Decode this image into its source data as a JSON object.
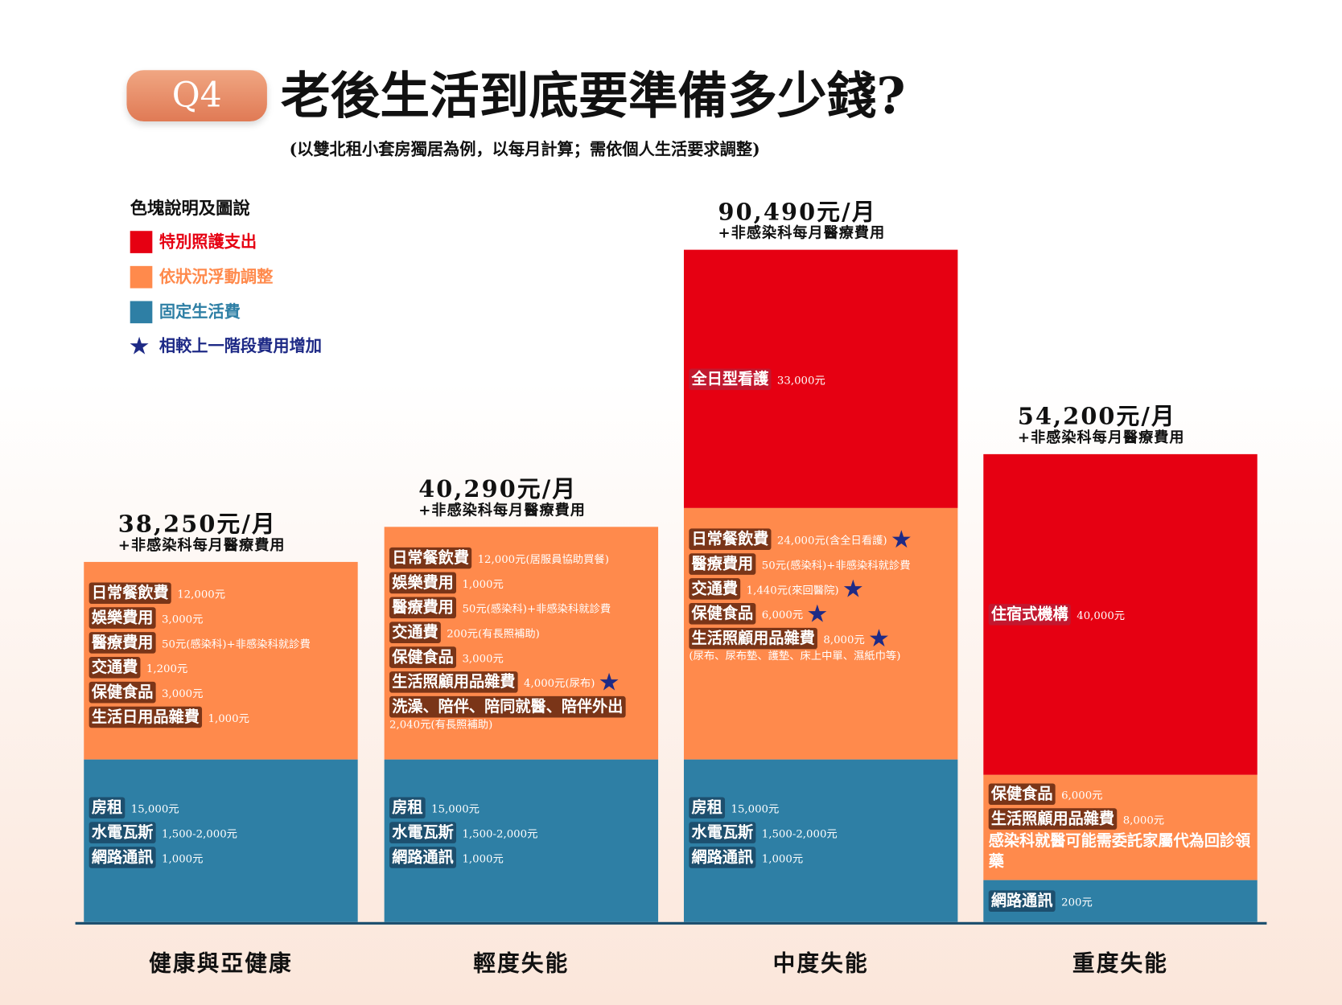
{
  "header": {
    "badge": "Q4",
    "title": "老後生活到底要準備多少錢?",
    "subtitle": "(以雙北租小套房獨居為例，以每月計算；需依個人生活要求調整)"
  },
  "legend": {
    "title": "色塊說明及圖說",
    "items": [
      {
        "label": "特別照護支出",
        "color": "#e60012"
      },
      {
        "label": "依狀況浮動調整",
        "color": "#ff8a4c"
      },
      {
        "label": "固定生活費",
        "color": "#2e7fa5"
      }
    ],
    "star": {
      "label": "相較上一階段費用增加",
      "color": "#1e2a86"
    }
  },
  "columns": [
    {
      "name": "健康與亞健康",
      "total": "38,250元/月",
      "note": "+非感染科每月醫療費用",
      "segments": [
        {
          "kind": 1,
          "items": [
            {
              "label": "日常餐飲費",
              "detail": "12,000元"
            },
            {
              "label": "娛樂費用",
              "detail": "3,000元"
            },
            {
              "label": "醫療費用",
              "detail": "50元(感染科)+非感染科就診費"
            },
            {
              "label": "交通費",
              "detail": "1,200元"
            },
            {
              "label": "保健食品",
              "detail": "3,000元"
            },
            {
              "label": "生活日用品雜費",
              "detail": "1,000元"
            }
          ]
        },
        {
          "kind": 2,
          "items": [
            {
              "label": "房租",
              "detail": "15,000元"
            },
            {
              "label": "水電瓦斯",
              "detail": "1,500-2,000元"
            },
            {
              "label": "網路通訊",
              "detail": "1,000元"
            }
          ]
        }
      ]
    },
    {
      "name": "輕度失能",
      "total": "40,290元/月",
      "note": "+非感染科每月醫療費用",
      "segments": [
        {
          "kind": 1,
          "items": [
            {
              "label": "日常餐飲費",
              "detail": "12,000元(居服員協助買餐)"
            },
            {
              "label": "娛樂費用",
              "detail": "1,000元"
            },
            {
              "label": "醫療費用",
              "detail": "50元(感染科)+非感染科就診費"
            },
            {
              "label": "交通費",
              "detail": "200元(有長照補助)"
            },
            {
              "label": "保健食品",
              "detail": "3,000元"
            },
            {
              "label": "生活照顧用品雜費",
              "detail": "4,000元(尿布)",
              "star": true
            },
            {
              "label": "洗澡、陪伴、陪同就醫、陪伴外出",
              "note": "2,040元(有長照補助)"
            }
          ]
        },
        {
          "kind": 2,
          "items": [
            {
              "label": "房租",
              "detail": "15,000元"
            },
            {
              "label": "水電瓦斯",
              "detail": "1,500-2,000元"
            },
            {
              "label": "網路通訊",
              "detail": "1,000元"
            }
          ]
        }
      ]
    },
    {
      "name": "中度失能",
      "total": "90,490元/月",
      "note": "+非感染科每月醫療費用",
      "segments": [
        {
          "kind": 0,
          "items": [
            {
              "label": "全日型看護",
              "detail": "33,000元"
            }
          ]
        },
        {
          "kind": 1,
          "items": [
            {
              "label": "日常餐飲費",
              "detail": "24,000元(含全日看護)",
              "star": true
            },
            {
              "label": "醫療費用",
              "detail": "50元(感染科)+非感染科就診費"
            },
            {
              "label": "交通費",
              "detail": "1,440元(來回醫院)",
              "star": true
            },
            {
              "label": "保健食品",
              "detail": "6,000元",
              "star": true
            },
            {
              "label": "生活照顧用品雜費",
              "detail": "8,000元",
              "star": true,
              "note": "(尿布、尿布墊、護墊、床上中單、濕紙巾等)"
            }
          ]
        },
        {
          "kind": 2,
          "items": [
            {
              "label": "房租",
              "detail": "15,000元"
            },
            {
              "label": "水電瓦斯",
              "detail": "1,500-2,000元"
            },
            {
              "label": "網路通訊",
              "detail": "1,000元"
            }
          ]
        }
      ]
    },
    {
      "name": "重度失能",
      "total": "54,200元/月",
      "note": "+非感染科每月醫療費用",
      "segments": [
        {
          "kind": 0,
          "items": [
            {
              "label": "住宿式機構",
              "detail": "40,000元"
            }
          ]
        },
        {
          "kind": 1,
          "items": [
            {
              "label": "保健食品",
              "detail": "6,000元"
            },
            {
              "label": "生活照顧用品雜費",
              "detail": "8,000元"
            },
            {
              "text": "感染科就醫可能需委託家屬代為回診領藥"
            }
          ]
        },
        {
          "kind": 2,
          "items": [
            {
              "label": "網路通訊",
              "detail": "200元"
            }
          ]
        }
      ]
    }
  ]
}
